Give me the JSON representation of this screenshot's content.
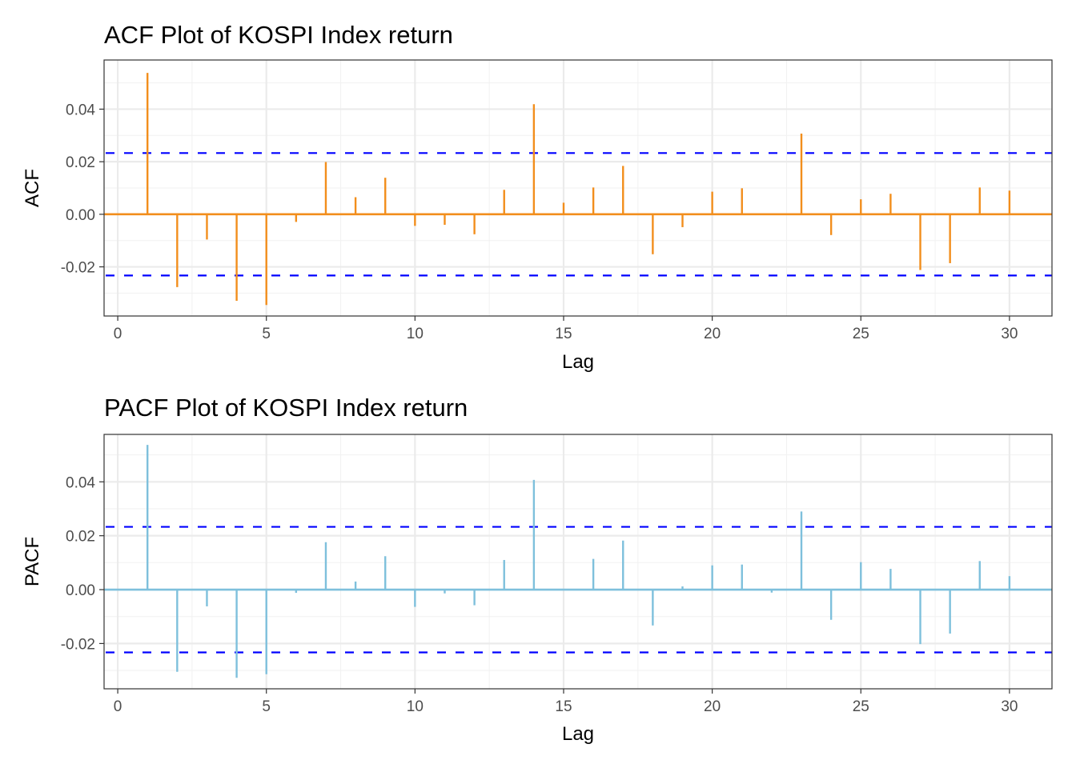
{
  "colors": {
    "acf_bar": "#f28e1c",
    "pacf_bar": "#7ec0dc",
    "conf_line": "#0000ff",
    "grid_major": "#ebebeb",
    "grid_minor": "#f2f2f2",
    "panel_border": "#333333"
  },
  "chart_data": [
    {
      "type": "bar",
      "title": "ACF Plot of KOSPI Index return",
      "xlabel": "Lag",
      "ylabel": "ACF",
      "xlim": [
        -0.46,
        31.43
      ],
      "ylim": [
        -0.0387,
        0.0587
      ],
      "xticks": [
        0,
        5,
        10,
        15,
        20,
        25,
        30
      ],
      "xtick_labels": [
        "0",
        "5",
        "10",
        "15",
        "20",
        "25",
        "30"
      ],
      "yticks": [
        -0.02,
        0.0,
        0.02,
        0.04
      ],
      "ytick_labels": [
        "-0.02",
        "0.00",
        "0.02",
        "0.04"
      ],
      "grid": true,
      "confidence_bounds": [
        -0.0233,
        0.0233
      ],
      "lags": [
        1,
        2,
        3,
        4,
        5,
        6,
        7,
        8,
        9,
        10,
        11,
        12,
        13,
        14,
        15,
        16,
        17,
        18,
        19,
        20,
        21,
        22,
        23,
        24,
        25,
        26,
        27,
        28,
        29,
        30
      ],
      "values": [
        0.0538,
        -0.0277,
        -0.0096,
        -0.0329,
        -0.0345,
        -0.0029,
        0.0199,
        0.0065,
        0.0139,
        -0.0044,
        -0.004,
        -0.0076,
        0.0093,
        0.0419,
        0.0044,
        0.0102,
        0.0184,
        -0.0152,
        -0.0049,
        0.0086,
        0.0099,
        0.0002,
        0.0307,
        -0.0079,
        0.0057,
        0.0078,
        -0.0212,
        -0.0186,
        0.0102,
        0.009
      ]
    },
    {
      "type": "bar",
      "title": "PACF Plot of KOSPI Index return",
      "xlabel": "Lag",
      "ylabel": "PACF",
      "xlim": [
        -0.46,
        31.43
      ],
      "ylim": [
        -0.0368,
        0.0576
      ],
      "xticks": [
        0,
        5,
        10,
        15,
        20,
        25,
        30
      ],
      "xtick_labels": [
        "0",
        "5",
        "10",
        "15",
        "20",
        "25",
        "30"
      ],
      "yticks": [
        -0.02,
        0.0,
        0.02,
        0.04
      ],
      "ytick_labels": [
        "-0.02",
        "0.00",
        "0.02",
        "0.04"
      ],
      "grid": true,
      "confidence_bounds": [
        -0.0233,
        0.0233
      ],
      "lags": [
        1,
        2,
        3,
        4,
        5,
        6,
        7,
        8,
        9,
        10,
        11,
        12,
        13,
        14,
        15,
        16,
        17,
        18,
        19,
        20,
        21,
        22,
        23,
        24,
        25,
        26,
        27,
        28,
        29,
        30
      ],
      "values": [
        0.0537,
        -0.0305,
        -0.0062,
        -0.0327,
        -0.0314,
        -0.0012,
        0.0176,
        0.003,
        0.0124,
        -0.0064,
        -0.0014,
        -0.0058,
        0.011,
        0.0407,
        0.0001,
        0.0114,
        0.0182,
        -0.0133,
        0.0012,
        0.009,
        0.0093,
        -0.0011,
        0.029,
        -0.0112,
        0.0102,
        0.0077,
        -0.0202,
        -0.0163,
        0.0106,
        0.005
      ]
    }
  ]
}
